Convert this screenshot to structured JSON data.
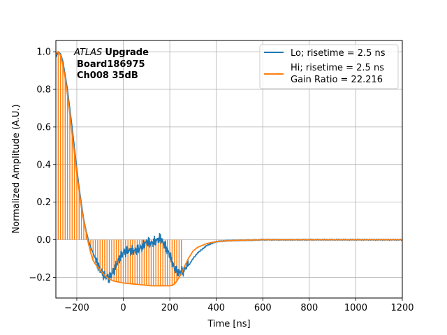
{
  "chart_data": {
    "type": "line",
    "xlabel": "Time [ns]",
    "ylabel": "Normalized Amplitude (A.U.)",
    "xlim": [
      -290,
      1200
    ],
    "ylim": [
      -0.31,
      1.06
    ],
    "xticks": [
      -200,
      0,
      200,
      400,
      600,
      800,
      1000,
      1200
    ],
    "yticks": [
      -0.2,
      0.0,
      0.2,
      0.4,
      0.6,
      0.8,
      1.0
    ],
    "xtick_labels": [
      "−200",
      "0",
      "200",
      "400",
      "600",
      "800",
      "1000",
      "1200"
    ],
    "ytick_labels": [
      "−0.2",
      "0.0",
      "0.2",
      "0.4",
      "0.6",
      "0.8",
      "1.0"
    ],
    "grid": true,
    "legend_position": "top-right",
    "annotation": {
      "atlas": "ATLAS",
      "upgrade": "Upgrade",
      "board": "Board186975",
      "channel": "Ch008 35dB"
    },
    "series": [
      {
        "name": "Lo; risetime = 2.5 ns",
        "color": "#1f77b4",
        "x": [
          -290,
          -280,
          -270,
          -260,
          -250,
          -240,
          -230,
          -220,
          -210,
          -200,
          -190,
          -180,
          -170,
          -160,
          -150,
          -140,
          -130,
          -120,
          -100,
          -80,
          -60,
          -40,
          -20,
          0,
          20,
          40,
          60,
          80,
          100,
          120,
          140,
          160,
          180,
          200,
          220,
          240,
          260,
          280,
          300,
          320,
          340,
          360,
          380,
          400,
          450,
          500,
          550,
          600,
          700,
          800,
          900,
          1000,
          1100,
          1200
        ],
        "y": [
          0.97,
          1.0,
          0.99,
          0.95,
          0.88,
          0.8,
          0.7,
          0.6,
          0.49,
          0.38,
          0.28,
          0.19,
          0.11,
          0.05,
          0.0,
          -0.04,
          -0.07,
          -0.1,
          -0.15,
          -0.18,
          -0.2,
          -0.17,
          -0.12,
          -0.08,
          -0.06,
          -0.05,
          -0.04,
          -0.03,
          -0.01,
          -0.03,
          -0.02,
          0.0,
          -0.03,
          -0.07,
          -0.14,
          -0.17,
          -0.17,
          -0.14,
          -0.1,
          -0.07,
          -0.05,
          -0.03,
          -0.02,
          -0.01,
          -0.005,
          -0.003,
          -0.002,
          0.0,
          0.0,
          0.0,
          0.0,
          0.0,
          0.0,
          0.0
        ]
      },
      {
        "name": "Hi; risetime = 2.5 ns\n Gain Ratio = 22.216",
        "color": "#ff7f0e",
        "x": [
          -290,
          -280,
          -270,
          -260,
          -250,
          -240,
          -230,
          -220,
          -210,
          -200,
          -190,
          -180,
          -170,
          -160,
          -150,
          -140,
          -130,
          -120,
          -100,
          -80,
          -60,
          -40,
          -20,
          0,
          40,
          80,
          120,
          160,
          200,
          210,
          220,
          230,
          240,
          250,
          260,
          280,
          300,
          320,
          340,
          360,
          380,
          400,
          450,
          500,
          550,
          600,
          700,
          800,
          900,
          1000,
          1100,
          1200
        ],
        "y": [
          0.99,
          1.0,
          0.98,
          0.93,
          0.86,
          0.77,
          0.67,
          0.56,
          0.46,
          0.35,
          0.26,
          0.17,
          0.1,
          0.04,
          -0.02,
          -0.07,
          -0.11,
          -0.13,
          -0.16,
          -0.19,
          -0.21,
          -0.22,
          -0.225,
          -0.23,
          -0.235,
          -0.24,
          -0.245,
          -0.245,
          -0.245,
          -0.243,
          -0.235,
          -0.22,
          -0.2,
          -0.18,
          -0.15,
          -0.1,
          -0.06,
          -0.04,
          -0.03,
          -0.02,
          -0.015,
          -0.01,
          -0.005,
          -0.003,
          -0.002,
          0.0,
          0.0,
          0.0,
          0.0,
          0.0,
          0.0,
          0.0
        ]
      }
    ]
  }
}
